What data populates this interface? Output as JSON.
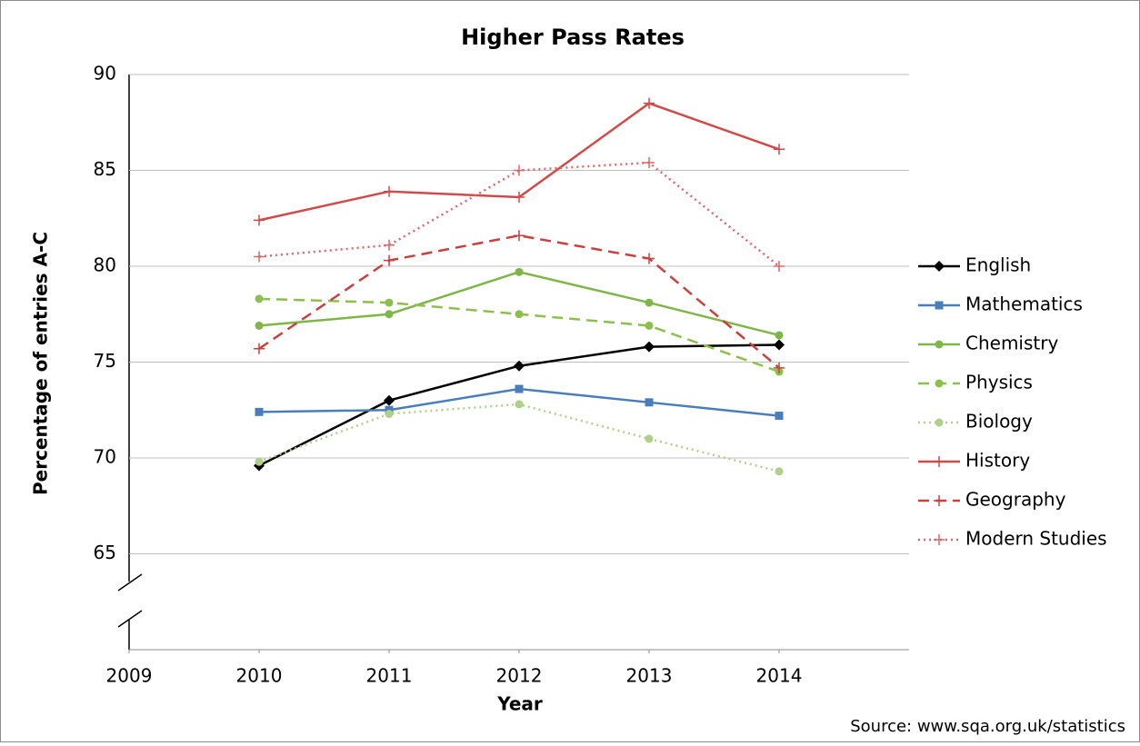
{
  "chart_data": {
    "type": "line",
    "title": "Higher Pass Rates",
    "x_label": "Year",
    "y_label": "Percentage of entries A-C",
    "source": "Source: www.sqa.org.uk/statistics",
    "x": [
      2010,
      2011,
      2012,
      2013,
      2014
    ],
    "xlim": [
      2009,
      2015
    ],
    "xticks": [
      2009,
      2010,
      2011,
      2012,
      2013,
      2014
    ],
    "ylim": [
      60,
      90
    ],
    "yticks": [
      65,
      70,
      75,
      80,
      85,
      90
    ],
    "grid": true,
    "legend": "right",
    "series": [
      {
        "name": "English",
        "color": "#000000",
        "marker": "diamond",
        "dash": "solid",
        "values": [
          69.6,
          73.0,
          74.8,
          75.8,
          75.9
        ]
      },
      {
        "name": "Mathematics",
        "color": "#4a7ebb",
        "marker": "square",
        "dash": "solid",
        "values": [
          72.4,
          72.5,
          73.6,
          72.9,
          72.2
        ]
      },
      {
        "name": "Chemistry",
        "color": "#7fb549",
        "marker": "circle",
        "dash": "solid",
        "values": [
          76.9,
          77.5,
          79.7,
          78.1,
          76.4
        ]
      },
      {
        "name": "Physics",
        "color": "#8cbf4e",
        "marker": "circle",
        "dash": "dashed",
        "values": [
          78.3,
          78.1,
          77.5,
          76.9,
          74.5
        ]
      },
      {
        "name": "Biology",
        "color": "#afd08a",
        "marker": "circle",
        "dash": "dotted",
        "values": [
          69.8,
          72.3,
          72.8,
          71.0,
          69.3
        ]
      },
      {
        "name": "History",
        "color": "#d04a4a",
        "marker": "plus",
        "dash": "solid",
        "values": [
          82.4,
          83.9,
          83.6,
          88.5,
          86.1
        ]
      },
      {
        "name": "Geography",
        "color": "#c9413f",
        "marker": "plus",
        "dash": "dashed",
        "values": [
          75.7,
          80.3,
          81.6,
          80.4,
          74.7
        ]
      },
      {
        "name": "Modern Studies",
        "color": "#d9686a",
        "marker": "plus",
        "dash": "dotted",
        "values": [
          80.5,
          81.1,
          85.0,
          85.4,
          80.0
        ]
      }
    ]
  }
}
